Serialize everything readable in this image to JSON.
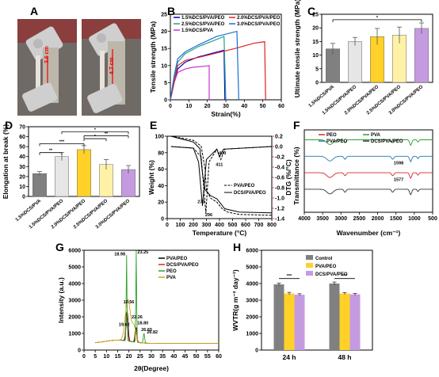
{
  "panels": {
    "A": {
      "label": "A",
      "measure_left": "3.6 cm",
      "measure_right": "4.7 cm"
    },
    "B": {
      "label": "B",
      "chart_data": {
        "type": "line",
        "xlabel": "Strain(%)",
        "ylabel": "Tensile strength (MPa)",
        "xlim": [
          0,
          60
        ],
        "ylim": [
          0,
          25
        ],
        "xticks": [
          "0",
          "10",
          "20",
          "30",
          "40",
          "50",
          "60"
        ],
        "yticks": [
          "0",
          "5",
          "10",
          "15",
          "20",
          "25"
        ],
        "series": [
          {
            "name": "1.5%DCS/PVA/PEO",
            "color": "#0000cc",
            "points": [
              [
                0,
                0
              ],
              [
                2,
                5
              ],
              [
                4,
                9
              ],
              [
                8,
                11
              ],
              [
                15,
                12.5
              ],
              [
                22,
                13.5
              ],
              [
                29,
                14.5
              ],
              [
                29.5,
                0
              ]
            ]
          },
          {
            "name": "2.5%DCS/PVA/PEO",
            "color": "#2a9d8f",
            "points": [
              [
                0,
                0
              ],
              [
                2,
                6
              ],
              [
                4,
                11
              ],
              [
                8,
                13.5
              ],
              [
                15,
                15.5
              ],
              [
                22,
                17
              ],
              [
                29,
                18.5
              ],
              [
                30,
                0
              ]
            ]
          },
          {
            "name": "1.5%DCS/PVA",
            "color": "#cc33cc",
            "points": [
              [
                0,
                0
              ],
              [
                2,
                5
              ],
              [
                4,
                8
              ],
              [
                8,
                9
              ],
              [
                12,
                9.5
              ],
              [
                18,
                9.8
              ],
              [
                21,
                10
              ],
              [
                21,
                0
              ]
            ]
          },
          {
            "name": "2.0%DCS/PVA/PEO",
            "color": "#dd2222",
            "points": [
              [
                0,
                0
              ],
              [
                2,
                5
              ],
              [
                4,
                10
              ],
              [
                8,
                11.5
              ],
              [
                20,
                13
              ],
              [
                35,
                15
              ],
              [
                45,
                16.5
              ],
              [
                51,
                17
              ],
              [
                51.5,
                0
              ]
            ]
          },
          {
            "name": "3.0%DCS/PVA/PEO",
            "color": "#1a6fd1",
            "points": [
              [
                0,
                0
              ],
              [
                2,
                7
              ],
              [
                4,
                12
              ],
              [
                8,
                14
              ],
              [
                15,
                16
              ],
              [
                25,
                18.5
              ],
              [
                36,
                20
              ],
              [
                37,
                0
              ]
            ]
          }
        ]
      }
    },
    "C": {
      "label": "C",
      "chart_data": {
        "type": "bar",
        "ylabel": "Ultimate tensile strength (MPa)",
        "categories": [
          "1.5%DCS/PVA",
          "1.5%DCS/PVA/PEO",
          "2.0%DCS/PVA/PEO",
          "2.5%DCS/PVA/PEO",
          "3.0%DCS/PVA/PEO"
        ],
        "values": [
          12.3,
          15.0,
          16.8,
          17.3,
          19.8
        ],
        "errors": [
          2.0,
          1.5,
          3.0,
          3.0,
          2.0
        ],
        "colors": [
          "#808080",
          "#e6e6e6",
          "#ffd129",
          "#fff2a8",
          "#c49be0"
        ],
        "ylim": [
          0,
          25
        ],
        "yticks": [
          "0",
          "5",
          "10",
          "15",
          "20",
          "25"
        ],
        "significance": [
          {
            "from": 0,
            "to": 4,
            "label": "*"
          }
        ]
      }
    },
    "D": {
      "label": "D",
      "chart_data": {
        "type": "bar",
        "ylabel": "Elongation at break (%)",
        "categories": [
          "1.5%DCS/PVA",
          "1.5%DCS/PVA/PEO",
          "2.0%DCS/PVA/PEO",
          "2.5%DCS/PVA/PEO",
          "3.0%DCS/PVA/PEO"
        ],
        "values": [
          23,
          40,
          47,
          32,
          27
        ],
        "errors": [
          2,
          4,
          4,
          5,
          4
        ],
        "colors": [
          "#808080",
          "#e6e6e6",
          "#ffd129",
          "#fff2a8",
          "#c49be0"
        ],
        "ylim": [
          0,
          70
        ],
        "yticks": [
          "0",
          "10",
          "20",
          "30",
          "40",
          "50",
          "60",
          "70"
        ],
        "significance": [
          {
            "from": 0,
            "to": 1,
            "label": "**"
          },
          {
            "from": 0,
            "to": 2,
            "label": "***"
          },
          {
            "from": 2,
            "to": 3,
            "label": "*"
          },
          {
            "from": 2,
            "to": 4,
            "label": "**"
          },
          {
            "from": 1,
            "to": 4,
            "label": "*"
          }
        ]
      }
    },
    "E": {
      "label": "E",
      "chart_data": {
        "type": "line",
        "xlabel": "Temperature (°C)",
        "ylabel": "Weight (%)",
        "ylabel2": "DTG (%/°C)",
        "xlim": [
          0,
          800
        ],
        "ylim": [
          0,
          100
        ],
        "ylim2": [
          -1.4,
          0.2
        ],
        "xticks": [
          "0",
          "100",
          "200",
          "300",
          "400",
          "500",
          "600",
          "700",
          "800"
        ],
        "yticks": [
          "0",
          "20",
          "40",
          "60",
          "80",
          "100"
        ],
        "yticks2": [
          "0.2",
          "0.0",
          "-0.2",
          "-0.4",
          "-0.6",
          "-0.8",
          "-1.0",
          "-1.2",
          "-1.4"
        ],
        "series": [
          {
            "name": "PVA/PEO",
            "style": "dashed",
            "axis": "left",
            "points": [
              [
                30,
                100
              ],
              [
                100,
                98
              ],
              [
                200,
                95
              ],
              [
                260,
                88
              ],
              [
                290,
                60
              ],
              [
                300,
                35
              ],
              [
                330,
                25
              ],
              [
                380,
                20
              ],
              [
                420,
                12
              ],
              [
                460,
                8
              ],
              [
                550,
                5
              ],
              [
                800,
                4
              ]
            ]
          },
          {
            "name": "DCS/PVA/PEO",
            "style": "solid",
            "axis": "left",
            "points": [
              [
                30,
                100
              ],
              [
                100,
                97
              ],
              [
                200,
                93
              ],
              [
                250,
                85
              ],
              [
                270,
                55
              ],
              [
                290,
                35
              ],
              [
                330,
                28
              ],
              [
                380,
                24
              ],
              [
                410,
                18
              ],
              [
                440,
                12
              ],
              [
                550,
                8
              ],
              [
                800,
                7
              ]
            ]
          },
          {
            "name": "DTG PVA/PEO",
            "style": "dashed",
            "axis": "right",
            "points": [
              [
                30,
                0
              ],
              [
                200,
                -0.03
              ],
              [
                260,
                -0.2
              ],
              [
                296,
                -1.3
              ],
              [
                320,
                -0.3
              ],
              [
                380,
                -0.05
              ],
              [
                411,
                -0.25
              ],
              [
                440,
                -0.05
              ],
              [
                800,
                0
              ]
            ]
          },
          {
            "name": "DTG DCS/PVA/PEO",
            "style": "solid",
            "axis": "right",
            "points": [
              [
                30,
                0
              ],
              [
                200,
                -0.03
              ],
              [
                240,
                -0.3
              ],
              [
                270,
                -1.15
              ],
              [
                300,
                -0.25
              ],
              [
                380,
                -0.05
              ],
              [
                400,
                -0.2
              ],
              [
                430,
                -0.05
              ],
              [
                800,
                0
              ]
            ]
          }
        ],
        "annotations": [
          "270",
          "296",
          "400",
          "411"
        ]
      }
    },
    "F": {
      "label": "F",
      "chart_data": {
        "type": "line",
        "xlabel": "Wavenumber (cm⁻¹)",
        "ylabel": "Transmittance (%)",
        "xlim": [
          4000,
          500
        ],
        "xticks": [
          "4000",
          "3500",
          "3000",
          "2500",
          "2000",
          "1500",
          "1000",
          "500"
        ],
        "series": [
          {
            "name": "PEO",
            "color": "#d62728",
            "offset": 0.52
          },
          {
            "name": "PVA",
            "color": "#2ca02c",
            "offset": 0.12
          },
          {
            "name": "PVA/PEO",
            "color": "#1f77b4",
            "offset": 0.32
          },
          {
            "name": "DCS/PVA/PEO",
            "color": "#333333",
            "offset": 0.72
          }
        ],
        "annotations": [
          "1598",
          "1577"
        ]
      }
    },
    "G": {
      "label": "G",
      "chart_data": {
        "type": "line",
        "xlabel": "2θ(Degree)",
        "ylabel": "Intensity (a.u.)",
        "xlim": [
          0,
          60
        ],
        "ylim": [
          0,
          6000
        ],
        "xticks": [
          "0",
          "5",
          "10",
          "15",
          "20",
          "25",
          "30",
          "35",
          "40",
          "45",
          "50",
          "55",
          "60"
        ],
        "yticks": [
          "0",
          "1000",
          "2000",
          "3000",
          "4000",
          "5000",
          "6000"
        ],
        "series": [
          {
            "name": "PVA/PEO",
            "color": "#000000"
          },
          {
            "name": "DCS/PVA/PEO",
            "color": "#d62728"
          },
          {
            "name": "PEO",
            "color": "#2ca02c"
          },
          {
            "name": "PVA",
            "color": "#d4a017"
          }
        ],
        "annotations": [
          "18.98",
          "23.25",
          "19.56",
          "22.26",
          "18.80",
          "19.62",
          "26.65",
          "26.82"
        ]
      }
    },
    "H": {
      "label": "H",
      "chart_data": {
        "type": "bar",
        "ylabel": "WVTR(g m⁻² day⁻¹)",
        "categories": [
          "24 h",
          "48 h"
        ],
        "series": [
          {
            "name": "Control",
            "color": "#808080",
            "values": [
              3950,
              4000
            ],
            "errors": [
              80,
              90
            ]
          },
          {
            "name": "PVA/PEO",
            "color": "#ffd129",
            "values": [
              3400,
              3400
            ],
            "errors": [
              70,
              60
            ]
          },
          {
            "name": "DCS/PVA/PEO",
            "color": "#c49be0",
            "values": [
              3330,
              3350
            ],
            "errors": [
              60,
              60
            ]
          }
        ],
        "ylim": [
          0,
          6000
        ],
        "yticks": [
          "0",
          "1000",
          "2000",
          "3000",
          "4000",
          "5000",
          "6000"
        ],
        "significance": [
          {
            "group": 0,
            "label": "***"
          },
          {
            "group": 1,
            "label": "***"
          }
        ]
      }
    }
  }
}
